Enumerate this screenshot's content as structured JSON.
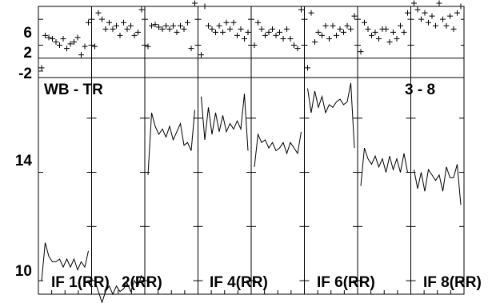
{
  "chart_data": {
    "type": "line",
    "title_left": "WB - TR",
    "title_right": "3 - 8",
    "top_strip": {
      "type": "scatter",
      "ylim": [
        -3,
        8
      ],
      "yticks": [
        6,
        2,
        -2
      ],
      "reference_line": 0
    },
    "main": {
      "ylim": [
        9.5,
        17.5
      ],
      "yticks": [
        14,
        10
      ]
    },
    "panel_labels": [
      {
        "panel": 0,
        "text": "IF 1(RR)"
      },
      {
        "panel": 1,
        "text": "2(RR)"
      },
      {
        "panel": 3,
        "text": "IF 4(RR)"
      },
      {
        "panel": 5,
        "text": "IF 6(RR)"
      },
      {
        "panel": 7,
        "text": "IF 8(RR)"
      }
    ],
    "panels": [
      {
        "residuals": [
          -1.5,
          3.5,
          3.2,
          3.0,
          2.5,
          2.0,
          3.0,
          1.5,
          2.2,
          2.5,
          3.2,
          0.5,
          1.8,
          5.5
        ],
        "series": [
          10.0,
          11.4,
          10.9,
          10.7,
          10.7,
          10.8,
          10.5,
          10.8,
          10.5,
          10.8,
          10.4,
          10.7,
          10.5,
          11.1
        ]
      },
      {
        "residuals": [
          1.8,
          7.0,
          6.0,
          4.5,
          5.5,
          4.5,
          5.0,
          3.5,
          5.5,
          4.5,
          5.0,
          3.5,
          4.0,
          7.5
        ],
        "series": [
          10.0,
          9.6,
          9.2,
          9.6,
          9.8,
          9.5,
          9.8,
          9.6,
          9.7,
          9.9,
          9.6,
          10.0,
          9.8,
          10.2
        ]
      },
      {
        "residuals": [
          1.8,
          5.0,
          5.2,
          4.8,
          4.5,
          5.0,
          4.5,
          5.0,
          4.0,
          5.0,
          4.5,
          5.5,
          1.5,
          8.5
        ],
        "series": [
          13.9,
          16.2,
          15.7,
          15.4,
          15.6,
          15.3,
          15.7,
          15.2,
          15.5,
          15.8,
          15.0,
          15.1,
          14.8,
          16.3
        ]
      },
      {
        "residuals": [
          0.5,
          8.0,
          5.0,
          4.5,
          4.0,
          5.0,
          4.0,
          5.5,
          4.5,
          5.5,
          3.5,
          4.5,
          3.0,
          4.0
        ],
        "series": [
          16.8,
          15.2,
          16.4,
          15.4,
          16.2,
          15.5,
          16.1,
          15.5,
          15.8,
          15.6,
          15.9,
          15.6,
          16.9,
          14.8
        ]
      },
      {
        "residuals": [
          2.0,
          5.5,
          4.5,
          3.5,
          4.0,
          4.5,
          3.5,
          4.0,
          3.0,
          4.5,
          3.0,
          2.0,
          1.5,
          7.5
        ],
        "series": [
          14.2,
          15.4,
          15.1,
          15.2,
          14.9,
          15.1,
          14.8,
          14.9,
          15.1,
          14.7,
          15.1,
          14.9,
          14.7,
          15.5
        ]
      },
      {
        "residuals": [
          -1.5,
          7.0,
          2.5,
          4.0,
          3.5,
          5.0,
          3.0,
          5.0,
          3.5,
          4.5,
          4.0,
          5.0,
          4.5,
          6.5
        ],
        "series": [
          17.1,
          16.2,
          17.0,
          16.4,
          16.8,
          16.2,
          16.5,
          16.4,
          16.6,
          16.7,
          16.5,
          16.6,
          17.3,
          14.9
        ]
      },
      {
        "residuals": [
          1.0,
          5.5,
          4.5,
          3.5,
          4.0,
          3.0,
          4.5,
          4.5,
          2.5,
          4.0,
          3.0,
          5.0,
          4.0,
          7.0
        ],
        "series": [
          13.5,
          14.9,
          14.5,
          14.3,
          14.6,
          14.2,
          14.5,
          14.0,
          14.6,
          14.1,
          14.5,
          14.0,
          14.7,
          14.0
        ]
      },
      {
        "residuals": [
          8.5,
          7.5,
          6.0,
          7.0,
          5.5,
          6.5,
          5.0,
          8.5,
          6.0,
          5.0,
          6.5,
          4.5,
          7.0,
          8.0
        ],
        "series": [
          14.1,
          13.4,
          14.0,
          13.3,
          14.1,
          13.9,
          13.7,
          13.9,
          13.3,
          14.2,
          13.8,
          13.8,
          14.3,
          12.8
        ]
      }
    ]
  }
}
